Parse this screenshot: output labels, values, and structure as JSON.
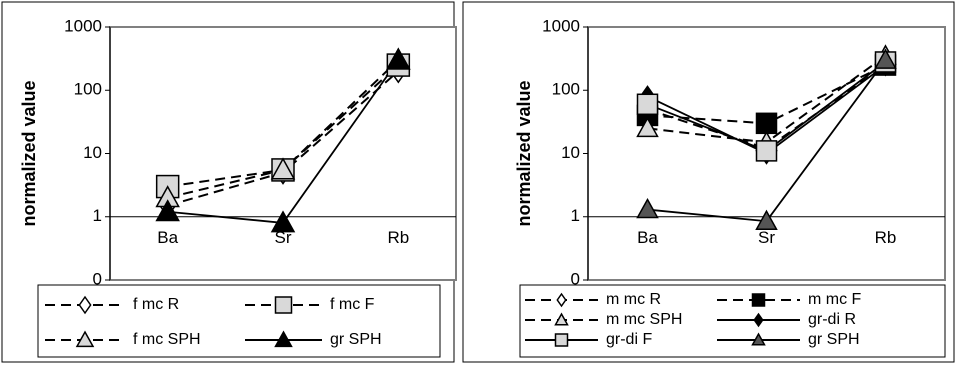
{
  "chart_data": [
    {
      "type": "line",
      "y_label": "normalized value",
      "log_scale": true,
      "categories": [
        "Ba",
        "Sr",
        "Rb"
      ],
      "ylim": [
        0.1,
        1000
      ],
      "yticks": [
        {
          "value": 0.1,
          "label": "0"
        },
        1,
        10,
        100,
        1000
      ],
      "series": [
        {
          "name": "f mc R",
          "color": "#000000",
          "marker": "diamond",
          "marker_fill": "#ffffff",
          "dashed": true,
          "values": [
            1.5,
            5,
            200
          ]
        },
        {
          "name": "f mc F",
          "color": "#000000",
          "marker": "square",
          "marker_fill": "#d9d9d9",
          "dashed": true,
          "values": [
            3,
            5.5,
            250
          ]
        },
        {
          "name": "f mc SPH",
          "color": "#000000",
          "marker": "triangle",
          "marker_fill": "#d9d9d9",
          "dashed": true,
          "values": [
            2,
            5.5,
            300
          ]
        },
        {
          "name": "gr SPH",
          "color": "#000000",
          "marker": "triangle",
          "marker_fill": "#000000",
          "dashed": false,
          "values": [
            1.2,
            0.8,
            300
          ]
        }
      ]
    },
    {
      "type": "line",
      "y_label": "normalized value",
      "log_scale": true,
      "categories": [
        "Ba",
        "Sr",
        "Rb"
      ],
      "ylim": [
        0.1,
        1000
      ],
      "yticks": [
        {
          "value": 0.1,
          "label": "0"
        },
        1,
        10,
        100,
        1000
      ],
      "series": [
        {
          "name": "m mc R",
          "color": "#000000",
          "marker": "diamond",
          "marker_fill": "#ffffff",
          "dashed": true,
          "values": [
            50,
            12,
            250
          ]
        },
        {
          "name": "m mc F",
          "color": "#000000",
          "marker": "square",
          "marker_fill": "#000000",
          "dashed": true,
          "values": [
            40,
            30,
            250
          ]
        },
        {
          "name": "m mc SPH",
          "color": "#000000",
          "marker": "triangle",
          "marker_fill": "#d9d9d9",
          "dashed": true,
          "values": [
            25,
            15,
            350
          ]
        },
        {
          "name": "gr-di R",
          "color": "#000000",
          "marker": "diamond",
          "marker_fill": "#000000",
          "dashed": false,
          "values": [
            80,
            10,
            250
          ]
        },
        {
          "name": "gr-di F",
          "color": "#000000",
          "marker": "square",
          "marker_fill": "#d9d9d9",
          "dashed": false,
          "values": [
            60,
            11,
            280
          ]
        },
        {
          "name": "gr SPH",
          "color": "#000000",
          "marker": "triangle",
          "marker_fill": "#555555",
          "dashed": false,
          "values": [
            1.3,
            0.85,
            300
          ]
        }
      ]
    }
  ]
}
